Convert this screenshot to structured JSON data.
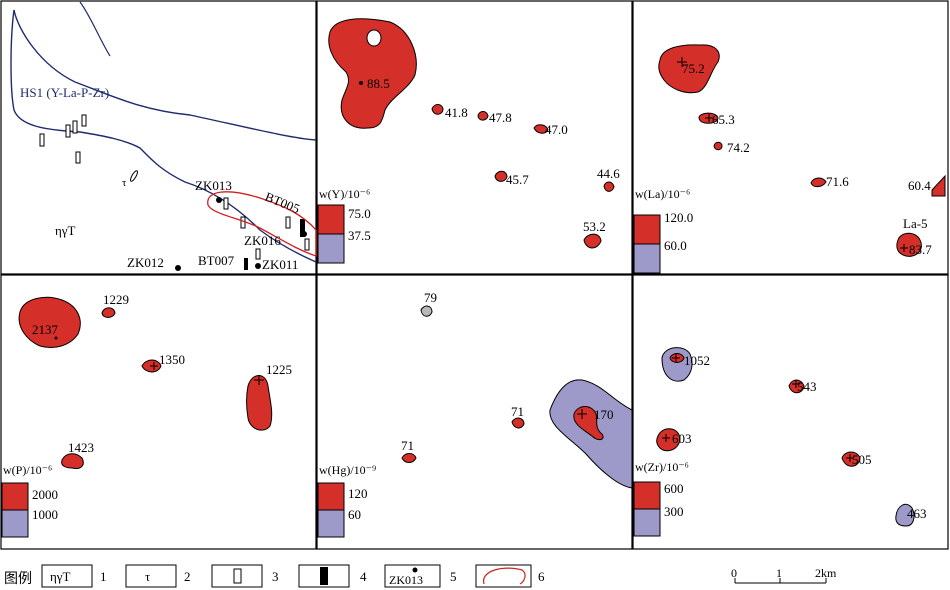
{
  "panel_geology": {
    "anomaly_label": "HS1 (Y-La-P-Zr)",
    "rock_label": "ηγT",
    "dike_label": "τ",
    "drill_labels": [
      "ZK013",
      "ZK016",
      "ZK011",
      "ZK012"
    ],
    "trench_labels": [
      "BT005",
      "BT007"
    ]
  },
  "panels": [
    {
      "id": "Y",
      "legend_title": "w(Y)/10⁻⁶",
      "high": "75.0",
      "low": "37.5",
      "values": [
        "88.5",
        "41.8",
        "47.8",
        "47.0",
        "45.7",
        "44.6",
        "53.2"
      ]
    },
    {
      "id": "La",
      "legend_title": "w(La)/10⁻⁶",
      "high": "120.0",
      "low": "60.0",
      "values": [
        "75.2",
        "65.3",
        "74.2",
        "71.6",
        "60.4",
        "83.7"
      ],
      "extra_label": "La-5"
    },
    {
      "id": "P",
      "legend_title": "w(P)/10⁻⁶",
      "high": "2000",
      "low": "1000",
      "values": [
        "1229",
        "2137",
        "1350",
        "1225",
        "1423"
      ]
    },
    {
      "id": "Hg",
      "legend_title": "w(Hg)/10⁻⁹",
      "high": "120",
      "low": "60",
      "values": [
        "79",
        "71",
        "170",
        "71"
      ]
    },
    {
      "id": "Zr",
      "legend_title": "w(Zr)/10⁻⁶",
      "high": "600",
      "low": "300",
      "values": [
        "1052",
        "543",
        "603",
        "505",
        "463"
      ]
    }
  ],
  "legend": {
    "title": "图例",
    "items": [
      {
        "num": "1",
        "symbol": "ηγT"
      },
      {
        "num": "2",
        "symbol": "τ"
      },
      {
        "num": "3",
        "symbol": ""
      },
      {
        "num": "4",
        "symbol": ""
      },
      {
        "num": "5",
        "symbol": "ZK013"
      },
      {
        "num": "6",
        "symbol": ""
      }
    ]
  },
  "scale_bar": {
    "ticks": [
      "0",
      "1",
      "2km"
    ]
  },
  "colors": {
    "high": "#d52f2a",
    "low": "#9d99c9",
    "gray": "#b9b9b9",
    "outline": "#1f2b6e",
    "boundary": "#d11f1f"
  }
}
